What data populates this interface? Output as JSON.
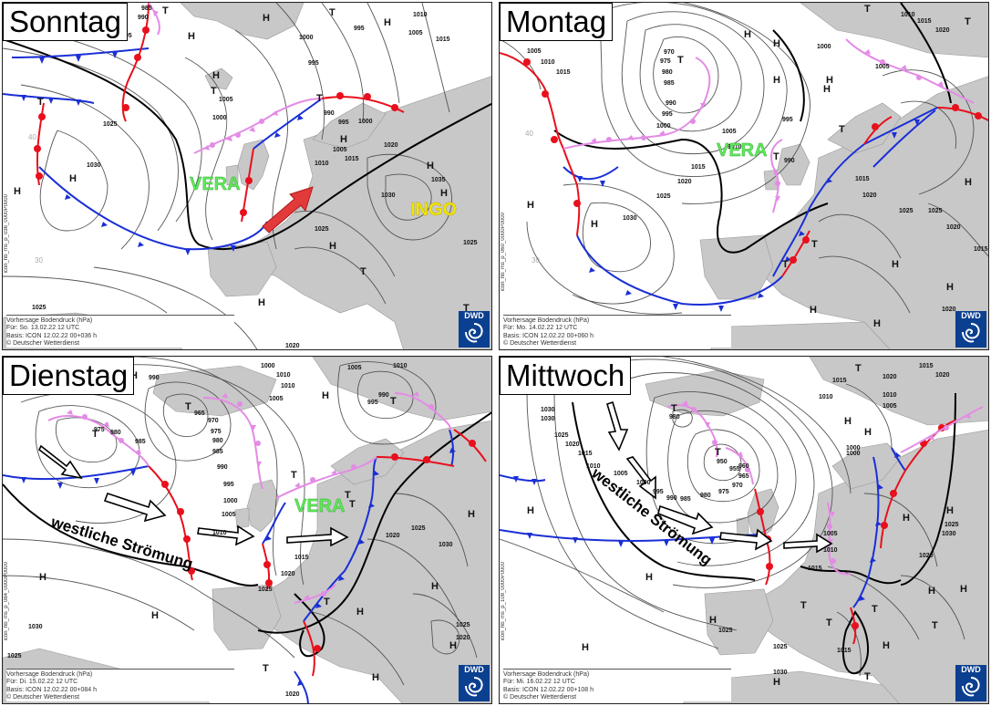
{
  "colors": {
    "land": "#c8c8c8",
    "sea": "#ffffff",
    "isobar": "#555555",
    "jet_line": "#000000",
    "warm_front": "#e8101c",
    "cold_front": "#1a2fd6",
    "occluded_front": "#e48be6",
    "vera_label": "#5ee85a",
    "ingo_label": "#f5e600",
    "flow_arrow": "#e23a3a",
    "logo_bg": "#0b3f8f"
  },
  "common": {
    "info_line1": "Vorhersage Bodendruck (hPa)",
    "copyright": "© Deutscher Wetterdienst",
    "logo_text": "DWD",
    "logo_icon": "swirl-icon"
  },
  "panels": [
    {
      "title": "Sonntag",
      "info_valid": "Für: So. 13.02.22 12 UTC",
      "info_basis": "Basis: ICON 12.02.22 00+036 h",
      "side_code": "icon_hb_ms_p_036_0000P0000",
      "storm_labels": [
        {
          "text": "VERA",
          "color": "vera",
          "x": 205,
          "y": 205
        },
        {
          "text": "INGO",
          "color": "ingo",
          "x": 447,
          "y": 233
        }
      ],
      "flow_text": "",
      "isobar_labels": [
        "985",
        "990",
        "995",
        "995",
        "1000",
        "995",
        "1010",
        "1005",
        "1015",
        "1025",
        "1030",
        "1005",
        "1000",
        "990",
        "995",
        "1000",
        "1005",
        "1010",
        "1015",
        "1020",
        "1035",
        "1030",
        "1025",
        "1025",
        "1025",
        "1020"
      ],
      "pressure_marks": [
        "T",
        "H",
        "H",
        "T",
        "H",
        "T",
        "T",
        "H",
        "H",
        "T",
        "H",
        "H",
        "H",
        "H",
        "T",
        "T",
        "H",
        "H",
        "H"
      ],
      "lat_marks": [
        "40",
        "30"
      ]
    },
    {
      "title": "Montag",
      "info_valid": "Für: Mo. 14.02.22 12 UTC",
      "info_basis": "Basis: ICON 12.02.22 00+060 h",
      "side_code": "icon_hb_ms_p_060_0000P0000",
      "storm_labels": [
        {
          "text": "VERA",
          "color": "vera",
          "x": 238,
          "y": 168
        }
      ],
      "flow_text": "",
      "isobar_labels": [
        "1005",
        "1010",
        "1015",
        "970",
        "975",
        "980",
        "985",
        "990",
        "995",
        "1000",
        "1005",
        "1010",
        "1015",
        "1020",
        "1025",
        "1030",
        "1005",
        "1010",
        "1015",
        "1020",
        "1000",
        "995",
        "990",
        "1025",
        "1020",
        "1015",
        "1020",
        "1025",
        "1015",
        "1020"
      ],
      "pressure_marks": [
        "T",
        "H",
        "H",
        "H",
        "H",
        "T",
        "T",
        "T",
        "T",
        "H",
        "H",
        "H",
        "H",
        "H",
        "T",
        "T",
        "H",
        "H",
        "H",
        "H"
      ],
      "lat_marks": [
        "40",
        "30"
      ]
    },
    {
      "title": "Dienstag",
      "info_valid": "Für: Di. 15.02.22 12 UTC",
      "info_basis": "Basis: ICON 12.02.22 00+084 h",
      "side_code": "icon_hb_ms_p_084_0000P0000",
      "storm_labels": [
        {
          "text": "VERA",
          "color": "vera",
          "x": 320,
          "y": 170
        }
      ],
      "flow_text": "westliche Strömung",
      "isobar_labels": [
        "990",
        "1000",
        "1010",
        "1005",
        "1010",
        "975",
        "980",
        "985",
        "965",
        "970",
        "975",
        "980",
        "985",
        "990",
        "995",
        "1000",
        "1005",
        "1010",
        "995",
        "990",
        "1015",
        "1020",
        "1025",
        "1030",
        "1025",
        "1020",
        "1020",
        "1025",
        "1030",
        "1025",
        "1020",
        "1020",
        "1010",
        "1005"
      ],
      "pressure_marks": [
        "T",
        "T",
        "T",
        "H",
        "H",
        "T",
        "H",
        "H",
        "H",
        "H",
        "T",
        "H",
        "T",
        "H",
        "H",
        "T",
        "T"
      ],
      "lat_marks": []
    },
    {
      "title": "Mittwoch",
      "info_valid": "Für: Mi. 16.02.22 12 UTC",
      "info_basis": "Basis: ICON 12.02.22 00+108 h",
      "side_code": "icon_hb_ms_p_108_0000P0000",
      "storm_labels": [],
      "flow_text": "westliche Strömung",
      "isobar_labels": [
        "1030",
        "1025",
        "1020",
        "1015",
        "1010",
        "1005",
        "1000",
        "995",
        "990",
        "985",
        "980",
        "975",
        "970",
        "965",
        "960",
        "955",
        "950",
        "980",
        "1015",
        "1010",
        "1005",
        "1000",
        "1010",
        "1015",
        "1020",
        "1025",
        "1030",
        "1025",
        "1020",
        "1015",
        "1010",
        "1005",
        "1000",
        "1015",
        "1020",
        "1025",
        "1030",
        "1030"
      ],
      "pressure_marks": [
        "T",
        "T",
        "T",
        "H",
        "H",
        "H",
        "T",
        "T",
        "H",
        "H",
        "H",
        "T",
        "T",
        "T",
        "H",
        "H",
        "H",
        "H",
        "H",
        "H"
      ],
      "lat_marks": []
    }
  ]
}
